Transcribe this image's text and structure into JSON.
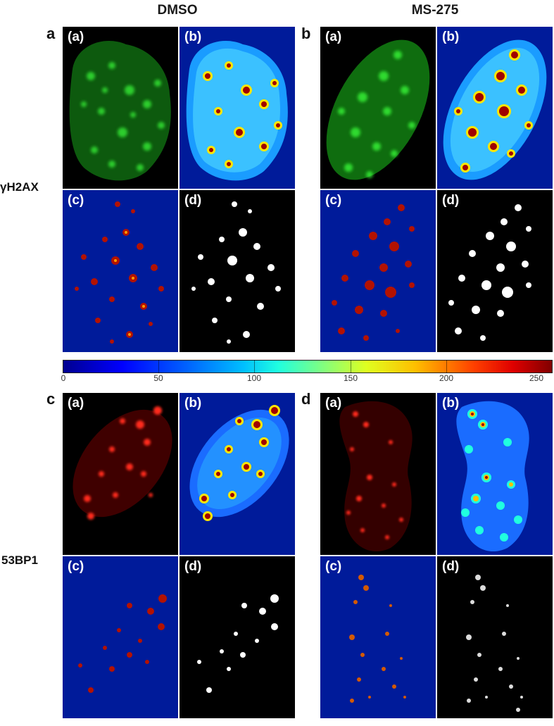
{
  "columns": {
    "left": "DMSO",
    "right": "MS-275"
  },
  "panels": {
    "a": "a",
    "b": "b",
    "c": "c",
    "d": "d"
  },
  "rows": {
    "top": "γH2AX",
    "bottom": "53BP1"
  },
  "subpanels": {
    "a": "(a)",
    "b": "(b)",
    "c": "(c)",
    "d": "(d)"
  },
  "colorbar": {
    "ticks": [
      "0",
      "50",
      "100",
      "150",
      "200",
      "250"
    ],
    "colormap": "jet",
    "range": [
      0,
      255
    ]
  },
  "colors": {
    "gammaH2AX_stain": "#3aff3a",
    "bp1_stain": "#ff2a1a",
    "heatmap_background": "#001b9a",
    "mask_foreground": "#ffffff"
  }
}
